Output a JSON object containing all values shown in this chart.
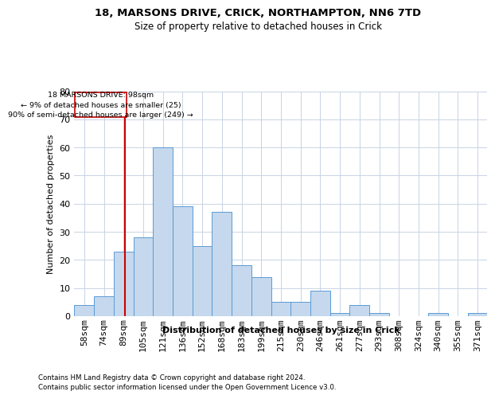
{
  "title1": "18, MARSONS DRIVE, CRICK, NORTHAMPTON, NN6 7TD",
  "title2": "Size of property relative to detached houses in Crick",
  "xlabel": "Distribution of detached houses by size in Crick",
  "ylabel": "Number of detached properties",
  "footer1": "Contains HM Land Registry data © Crown copyright and database right 2024.",
  "footer2": "Contains public sector information licensed under the Open Government Licence v3.0.",
  "bin_labels": [
    "58sqm",
    "74sqm",
    "89sqm",
    "105sqm",
    "121sqm",
    "136sqm",
    "152sqm",
    "168sqm",
    "183sqm",
    "199sqm",
    "215sqm",
    "230sqm",
    "246sqm",
    "261sqm",
    "277sqm",
    "293sqm",
    "308sqm",
    "324sqm",
    "340sqm",
    "355sqm",
    "371sqm"
  ],
  "bar_values": [
    4,
    7,
    23,
    28,
    60,
    39,
    25,
    37,
    18,
    14,
    5,
    5,
    9,
    1,
    4,
    1,
    0,
    0,
    1,
    0,
    1
  ],
  "bar_color": "#c5d8ed",
  "bar_edge_color": "#5b9bd5",
  "vline_color": "#cc0000",
  "ylim": [
    0,
    80
  ],
  "yticks": [
    0,
    10,
    20,
    30,
    40,
    50,
    60,
    70,
    80
  ],
  "background_color": "#ffffff",
  "grid_color": "#c8d4e3",
  "annotation_line1": "18 MARSONS DRIVE: 98sqm",
  "annotation_line2": "← 9% of detached houses are smaller (25)",
  "annotation_line3": "90% of semi-detached houses are larger (249) →"
}
